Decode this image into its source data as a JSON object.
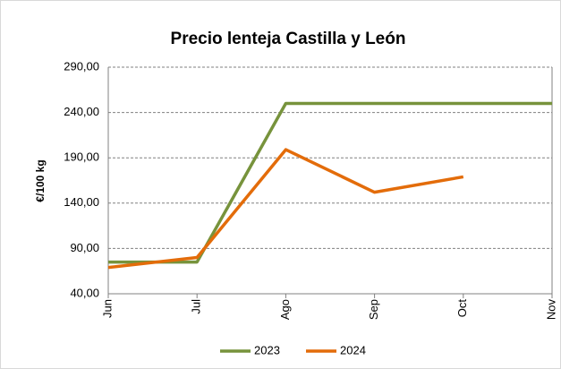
{
  "chart_data": {
    "type": "line",
    "title": "Precio lenteja Castilla y León",
    "y_label": "€/100 kg",
    "categories": [
      "Jun",
      "Jul",
      "Ago",
      "Sep",
      "Oct",
      "Nov"
    ],
    "series": [
      {
        "name": "2023",
        "color": "#77933c",
        "values": [
          75,
          75,
          250,
          250,
          250,
          250
        ]
      },
      {
        "name": "2024",
        "color": "#e36c0a",
        "values": [
          69,
          80,
          199,
          152,
          169,
          null
        ]
      }
    ],
    "ylim": [
      40,
      290
    ],
    "yticks": [
      {
        "value": 40,
        "label": "40,00"
      },
      {
        "value": 90,
        "label": "90,00"
      },
      {
        "value": 140,
        "label": "140,00"
      },
      {
        "value": 190,
        "label": "190,00"
      },
      {
        "value": 240,
        "label": "240,00"
      },
      {
        "value": 290,
        "label": "290,00"
      }
    ],
    "grid": true,
    "legend": "bottom"
  }
}
